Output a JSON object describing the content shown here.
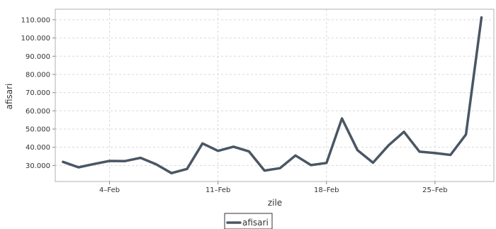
{
  "chart_data": {
    "type": "line",
    "title": "",
    "xlabel": "zile",
    "ylabel": "afisari",
    "x_tick_labels": [
      "4–Feb",
      "11–Feb",
      "18–Feb",
      "25–Feb"
    ],
    "x_tick_days": [
      4,
      11,
      18,
      25
    ],
    "y_tick_values": [
      30000,
      40000,
      50000,
      60000,
      70000,
      80000,
      90000,
      100000,
      110000
    ],
    "y_tick_labels": [
      "30.000",
      "40.000",
      "50.000",
      "60.000",
      "70.000",
      "80.000",
      "90.000",
      "100.000",
      "110.000"
    ],
    "xlim": [
      0.5,
      28.8
    ],
    "ylim": [
      21200,
      115800
    ],
    "grid": true,
    "legend_position": "bottom-center",
    "series": [
      {
        "name": "afisari",
        "color": "#4a5664",
        "x": [
          1,
          2,
          3,
          4,
          5,
          6,
          7,
          8,
          9,
          10,
          11,
          12,
          13,
          14,
          15,
          16,
          17,
          18,
          19,
          20,
          21,
          22,
          23,
          24,
          25,
          26,
          27,
          28
        ],
        "values": [
          32000,
          29000,
          30800,
          32500,
          32400,
          34200,
          30700,
          25800,
          28100,
          42100,
          38000,
          40300,
          37700,
          27200,
          28500,
          35500,
          30200,
          31400,
          55800,
          38400,
          31500,
          41000,
          48500,
          37600,
          36800,
          35800,
          47000,
          111300
        ]
      }
    ]
  }
}
